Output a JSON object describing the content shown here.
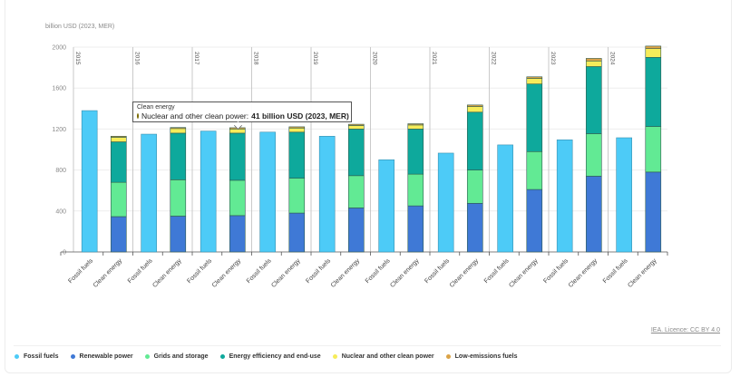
{
  "chart_data": {
    "type": "bar",
    "stacked": true,
    "title": "",
    "ylabel": "billion USD (2023, MER)",
    "xlabel": "",
    "ylim": [
      0,
      2000
    ],
    "yticks": [
      0,
      400,
      800,
      1200,
      1600,
      2000
    ],
    "grid": true,
    "years": [
      "2015",
      "2016",
      "2017",
      "2018",
      "2019",
      "2020",
      "2021",
      "2022",
      "2023",
      "2024"
    ],
    "categories": [
      "Fossil fuels",
      "Clean energy"
    ],
    "series": [
      {
        "name": "Fossil fuels",
        "color": "#4dcbf7",
        "group": "Fossil fuels",
        "values": [
          1380,
          1150,
          1180,
          1170,
          1130,
          900,
          965,
          1045,
          1095,
          1115
        ]
      },
      {
        "name": "Renewable power",
        "color": "#3f79d6",
        "group": "Clean energy",
        "values": [
          345,
          350,
          355,
          380,
          430,
          450,
          475,
          610,
          740,
          780
        ]
      },
      {
        "name": "Grids and storage",
        "color": "#62ea94",
        "group": "Clean energy",
        "values": [
          335,
          355,
          345,
          340,
          315,
          310,
          325,
          370,
          415,
          445
        ]
      },
      {
        "name": "Energy efficiency and end-use",
        "color": "#0ea99c",
        "group": "Clean energy",
        "values": [
          395,
          455,
          460,
          450,
          455,
          440,
          565,
          660,
          655,
          675
        ]
      },
      {
        "name": "Nuclear and other clean power",
        "color": "#f6ec5a",
        "group": "Clean energy",
        "values": [
          45,
          45,
          41,
          40,
          35,
          40,
          55,
          55,
          55,
          85
        ]
      },
      {
        "name": "Low-emissions fuels",
        "color": "#dba347",
        "group": "Clean energy",
        "values": [
          10,
          10,
          12,
          12,
          12,
          12,
          15,
          15,
          25,
          25
        ]
      }
    ],
    "legend_position": "bottom",
    "tooltip": {
      "year": "2017",
      "category": "Clean energy",
      "series": "Nuclear and other clean power",
      "label": "Nuclear and other clean power: ",
      "value_text": "41 billion USD (2023, MER)"
    }
  },
  "credit": "IEA. Licence: CC BY 4.0",
  "legend": [
    {
      "label": "Fossil fuels",
      "color": "#4dcbf7"
    },
    {
      "label": "Renewable power",
      "color": "#3f79d6"
    },
    {
      "label": "Grids and storage",
      "color": "#62ea94"
    },
    {
      "label": "Energy efficiency and end-use",
      "color": "#0ea99c"
    },
    {
      "label": "Nuclear and other clean power",
      "color": "#f6ec5a"
    },
    {
      "label": "Low-emissions fuels",
      "color": "#dba347"
    }
  ]
}
